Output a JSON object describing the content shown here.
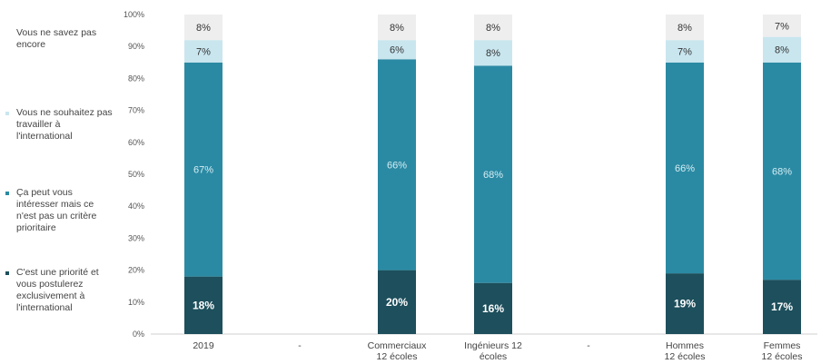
{
  "chart_data": {
    "type": "bar",
    "stacked": true,
    "percent": true,
    "ylim": [
      0,
      100
    ],
    "y_ticks": [
      "0%",
      "10%",
      "20%",
      "30%",
      "40%",
      "50%",
      "60%",
      "70%",
      "80%",
      "90%",
      "100%"
    ],
    "categories": [
      "2019",
      "-",
      "Commerciaux\n12 écoles",
      "Ingénieurs 12\nécoles",
      "-",
      "Hommes\n12 écoles",
      "Femmes\n12 écoles"
    ],
    "series": [
      {
        "name": "C'est une priorité et vous postulerez exclusivement à l'international",
        "color": "#1d4f5c",
        "values": [
          18,
          null,
          20,
          16,
          null,
          19,
          17
        ],
        "labels": [
          "18%",
          "",
          "20%",
          "16%",
          "",
          "19%",
          "17%"
        ]
      },
      {
        "name": "Ça peut vous intéresser mais ce n'est pas un critère prioritaire",
        "color": "#2b8aa3",
        "values": [
          67,
          null,
          66,
          68,
          null,
          66,
          68
        ],
        "labels": [
          "67%",
          "",
          "66%",
          "68%",
          "",
          "66%",
          "68%"
        ]
      },
      {
        "name": "Vous ne souhaitez pas travailler à l'international",
        "color": "#c9e6ef",
        "values": [
          7,
          null,
          6,
          8,
          null,
          7,
          8
        ],
        "labels": [
          "7%",
          "",
          "6%",
          "8%",
          "",
          "7%",
          "8%"
        ]
      },
      {
        "name": "Vous ne savez pas encore",
        "color": "#eeeeee",
        "values": [
          8,
          null,
          8,
          8,
          null,
          8,
          7
        ],
        "labels": [
          "8%",
          "",
          "8%",
          "8%",
          "",
          "8%",
          "7%"
        ]
      }
    ],
    "legend_position": "left",
    "legend_order": [
      3,
      2,
      1,
      0
    ]
  }
}
